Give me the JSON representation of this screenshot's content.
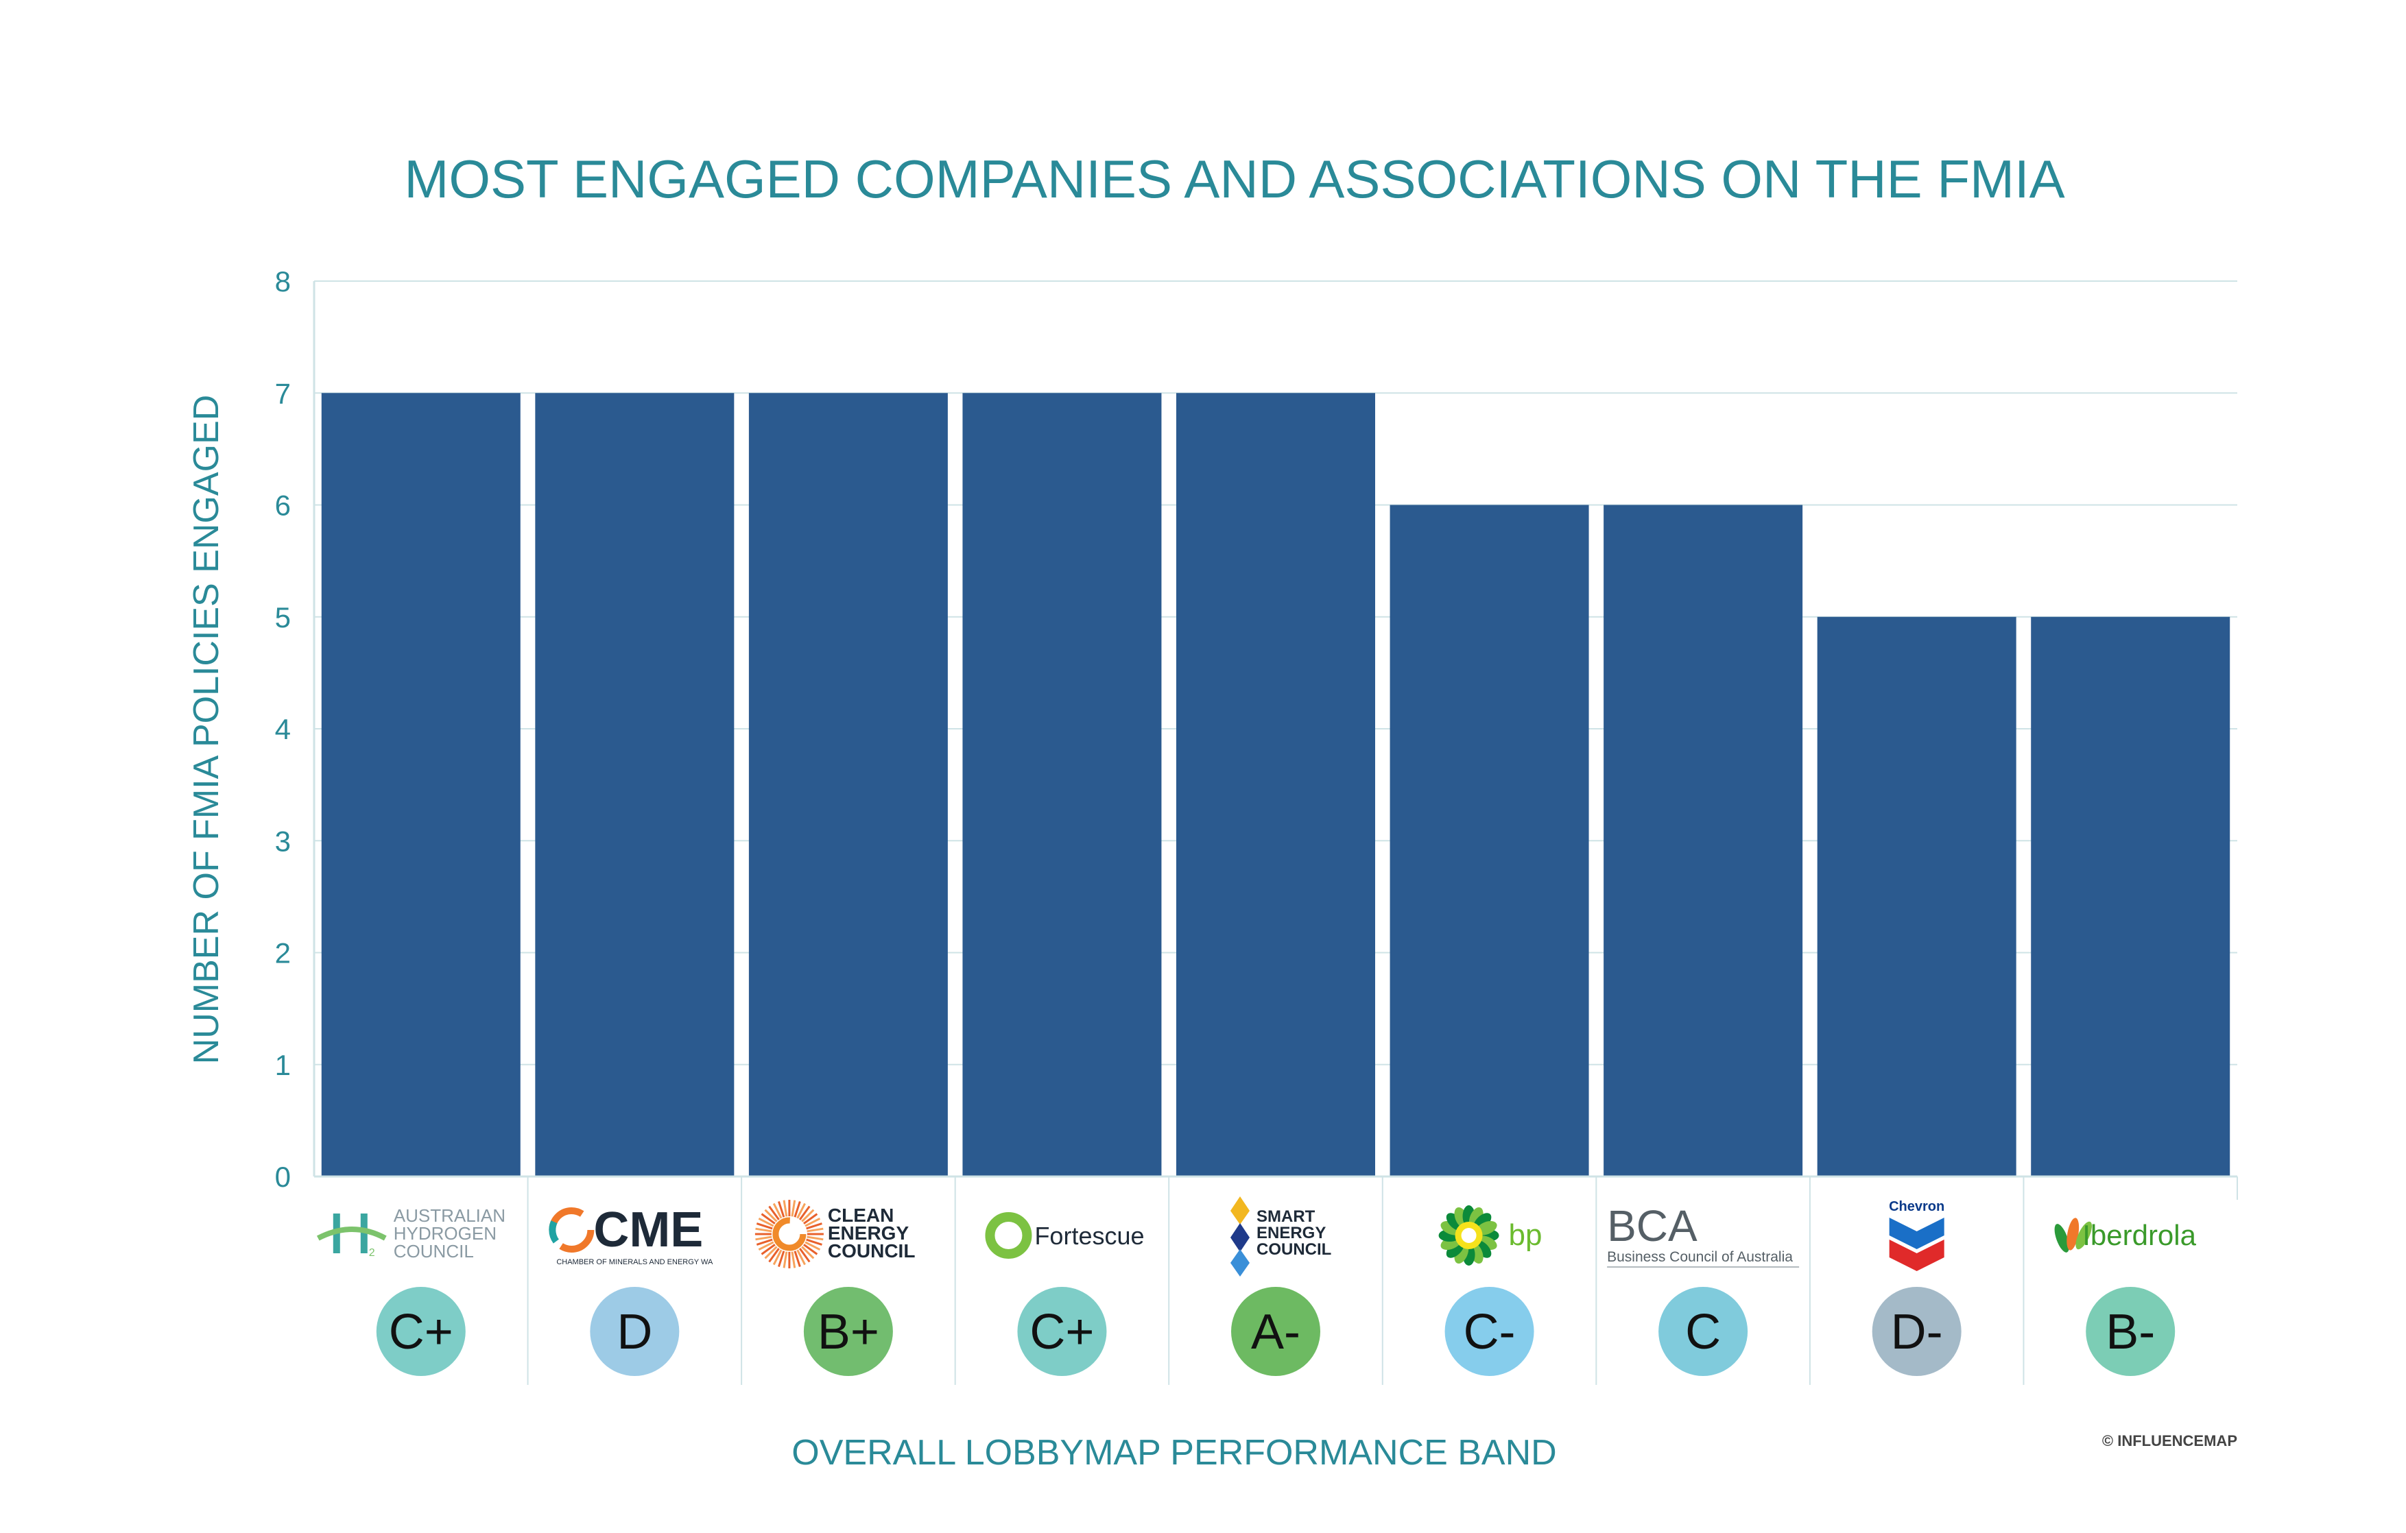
{
  "credit": "© INFLUENCEMAP",
  "colors": {
    "bar": "#2b5a8f",
    "text_accent": "#2a8a98",
    "gridline": "#cfe3e6"
  },
  "chart_data": {
    "type": "bar",
    "title": "MOST ENGAGED COMPANIES AND ASSOCIATIONS ON THE FMIA",
    "xlabel": "OVERALL LOBBYMAP PERFORMANCE BAND",
    "ylabel": "NUMBER OF FMIA POLICIES ENGAGED",
    "ylim": [
      0,
      8
    ],
    "yticks": [
      "0",
      "1",
      "2",
      "3",
      "4",
      "5",
      "6",
      "7",
      "8"
    ],
    "grid": true,
    "categories": [
      "Australian Hydrogen Council",
      "CME",
      "Clean Energy Council",
      "Fortescue",
      "Smart Energy Council",
      "bp",
      "BCA",
      "Chevron",
      "Iberdrola"
    ],
    "values": [
      7,
      7,
      7,
      7,
      7,
      6,
      6,
      5,
      5
    ],
    "bands": [
      {
        "grade": "C+",
        "color": "#7ecdc7"
      },
      {
        "grade": "D",
        "color": "#9dcbe6"
      },
      {
        "grade": "B+",
        "color": "#72bd6f"
      },
      {
        "grade": "C+",
        "color": "#7ecdc7"
      },
      {
        "grade": "A-",
        "color": "#6dba62"
      },
      {
        "grade": "C-",
        "color": "#86cdec"
      },
      {
        "grade": "C",
        "color": "#80cbdc"
      },
      {
        "grade": "D-",
        "color": "#a4bac8"
      },
      {
        "grade": "B-",
        "color": "#7ccdb5"
      }
    ],
    "logos": [
      {
        "icon": "hydrogen-h2-icon",
        "lines": [
          "AUSTRALIAN",
          "HYDROGEN",
          "COUNCIL"
        ],
        "sub": "2"
      },
      {
        "icon": "cme-ring-icon",
        "lines": [
          "CME"
        ],
        "sub": "CHAMBER OF MINERALS AND ENERGY WA"
      },
      {
        "icon": "sunburst-icon",
        "lines": [
          "CLEAN",
          "ENERGY",
          "COUNCIL"
        ],
        "sub": ""
      },
      {
        "icon": "ring-icon",
        "lines": [
          "Fortescue"
        ],
        "sub": ""
      },
      {
        "icon": "diamond-stack-icon",
        "lines": [
          "SMART",
          "ENERGY",
          "COUNCIL"
        ],
        "sub": ""
      },
      {
        "icon": "helios-icon",
        "lines": [
          "bp"
        ],
        "sub": ""
      },
      {
        "icon": "",
        "lines": [
          "BCA"
        ],
        "sub": "Business Council of Australia"
      },
      {
        "icon": "chevron-hallmark-icon",
        "lines": [
          "Chevron"
        ],
        "sub": ""
      },
      {
        "icon": "leaves-icon",
        "lines": [
          "Iberdrola"
        ],
        "sub": ""
      }
    ]
  }
}
